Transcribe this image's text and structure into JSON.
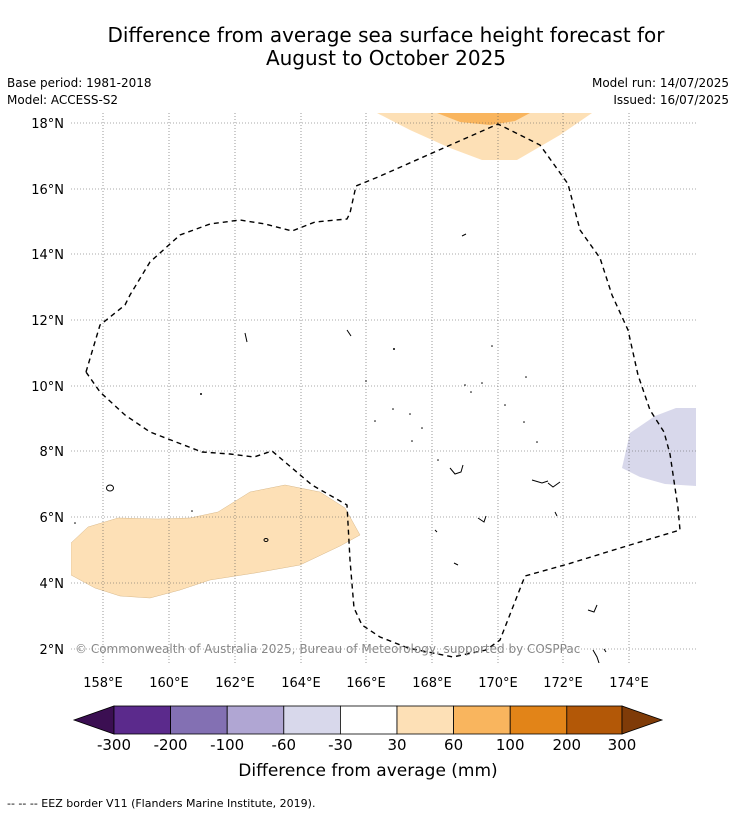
{
  "title": {
    "line1": "Difference from average sea surface height forecast for",
    "line2": "August to October 2025"
  },
  "meta": {
    "base_period": "Base period: 1981-2018",
    "model": "Model: ACCESS-S2",
    "model_run": "Model run: 14/07/2025",
    "issued": "Issued: 16/07/2025"
  },
  "map": {
    "credit": "© Commonwealth of Australia 2025, Bureau of Meteorology, supported by COSPPac",
    "lon_labels": [
      "158°E",
      "160°E",
      "162°E",
      "164°E",
      "166°E",
      "168°E",
      "170°E",
      "172°E",
      "174°E"
    ],
    "lat_labels": [
      "18°N",
      "16°N",
      "14°N",
      "12°N",
      "10°N",
      "8°N",
      "6°N",
      "4°N",
      "2°N"
    ],
    "gridlines": true,
    "eez_border": "dashed black line"
  },
  "colorbar": {
    "label": "Difference from average (mm)",
    "ticks": [
      "-300",
      "-200",
      "-100",
      "-60",
      "-30",
      "30",
      "60",
      "100",
      "200",
      "300"
    ],
    "colors": [
      "#3b0f52",
      "#5b2a8c",
      "#8370b3",
      "#b0a6d3",
      "#d8d8eb",
      "#ffffff",
      "#fde0b6",
      "#f9b55e",
      "#e28418",
      "#b35807",
      "#7f3b08"
    ]
  },
  "footer": "--  --  -- EEZ border V11 (Flanders Marine Institute, 2019)."
}
